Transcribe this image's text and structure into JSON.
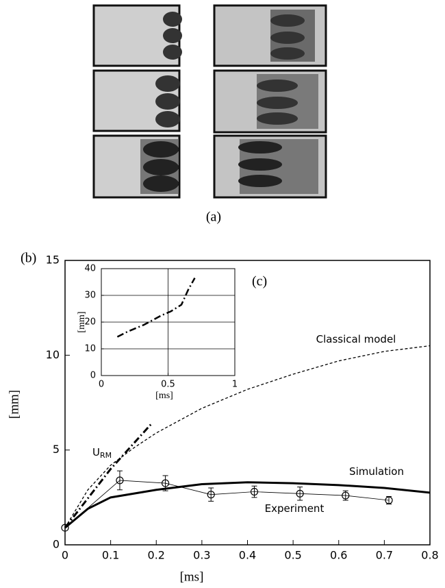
{
  "panel_a": {
    "label": "(a)"
  },
  "chart_data": [
    {
      "type": "line",
      "panel_label": "(b)",
      "x_label": "[ms]",
      "y_label": "[mm]",
      "xlim": [
        0,
        0.8
      ],
      "ylim": [
        0,
        15
      ],
      "xticks": [
        0,
        0.1,
        0.2,
        0.3,
        0.4,
        0.5,
        0.6,
        0.7,
        0.8
      ],
      "yticks": [
        0,
        5,
        10,
        15
      ],
      "grid": false,
      "series": [
        {
          "name": "Classical model",
          "color": "#000000",
          "line_style": "dashed",
          "line_width": 1.3,
          "x": [
            0,
            0.05,
            0.1,
            0.15,
            0.2,
            0.3,
            0.4,
            0.5,
            0.6,
            0.7,
            0.8
          ],
          "values": [
            0.9,
            2.9,
            4.2,
            5.1,
            5.9,
            7.2,
            8.2,
            9.0,
            9.7,
            10.2,
            10.5
          ]
        },
        {
          "name": "U",
          "name_sub": "RM",
          "color": "#000000",
          "line_style": "dashdot",
          "line_width": 3,
          "x": [
            0,
            0.1,
            0.19
          ],
          "values": [
            0.9,
            4.0,
            6.4
          ]
        },
        {
          "name": "Simulation",
          "color": "#000000",
          "line_style": "solid",
          "line_width": 3,
          "x": [
            0,
            0.05,
            0.1,
            0.2,
            0.3,
            0.4,
            0.5,
            0.6,
            0.7,
            0.8
          ],
          "values": [
            0.9,
            1.9,
            2.5,
            2.9,
            3.2,
            3.3,
            3.25,
            3.15,
            3.0,
            2.75
          ]
        },
        {
          "name": "Experiment",
          "color": "#000000",
          "line_style": "solid",
          "line_width": 0.8,
          "marker": "circle",
          "x": [
            0,
            0.12,
            0.22,
            0.32,
            0.415,
            0.515,
            0.615,
            0.71
          ],
          "values": [
            0.9,
            3.4,
            3.25,
            2.65,
            2.8,
            2.7,
            2.6,
            2.35
          ],
          "errors": [
            0,
            0.5,
            0.4,
            0.35,
            0.3,
            0.35,
            0.25,
            0.2
          ]
        }
      ]
    },
    {
      "type": "line",
      "panel_label": "(c)",
      "x_label": "[ms]",
      "y_label": "[mm]",
      "xlim": [
        0,
        1
      ],
      "ylim": [
        0,
        40
      ],
      "xticks": [
        0,
        0.5,
        1
      ],
      "yticks": [
        0,
        10,
        20,
        30,
        40
      ],
      "grid": true,
      "series": [
        {
          "color": "#000000",
          "line_style": "dashdot",
          "line_width": 2.5,
          "x": [
            0.12,
            0.2,
            0.32,
            0.45,
            0.52,
            0.6,
            0.65,
            0.7
          ],
          "values": [
            14.5,
            16.5,
            19,
            22.5,
            24,
            26.5,
            32,
            36.5
          ]
        }
      ]
    }
  ]
}
